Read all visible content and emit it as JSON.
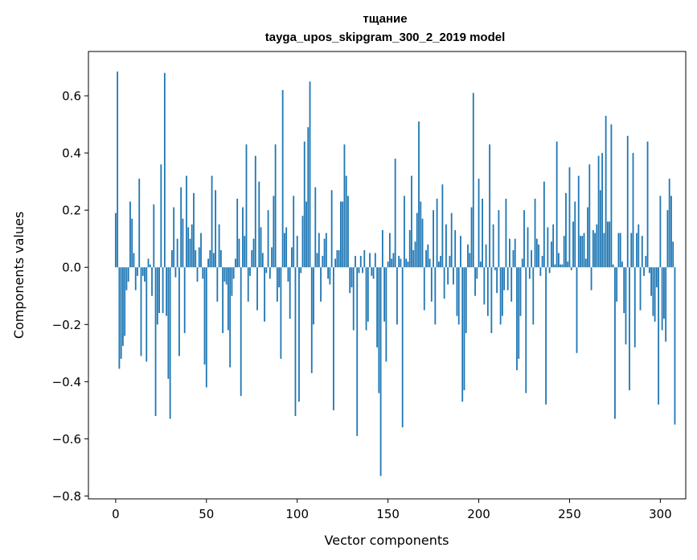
{
  "chart_data": {
    "type": "bar",
    "title": "тщание",
    "subtitle": "tayga_upos_skipgram_300_2_2019 model",
    "xlabel": "Vector components",
    "ylabel": "Components values",
    "xlim": [
      -15,
      314
    ],
    "ylim": [
      -0.81,
      0.755
    ],
    "xticks": [
      0,
      50,
      100,
      150,
      200,
      250,
      300
    ],
    "xtick_labels": [
      "0",
      "50",
      "100",
      "150",
      "200",
      "250",
      "300"
    ],
    "yticks": [
      0.6,
      0.4,
      0.2,
      0.0,
      -0.2,
      -0.4,
      -0.6,
      -0.8
    ],
    "ytick_labels": [
      "0.6",
      "0.4",
      "0.2",
      "0.0",
      "−0.2",
      "−0.4",
      "−0.6",
      "−0.8"
    ],
    "bar_color": "#1f77b4",
    "values": [
      0.19,
      0.685,
      -0.355,
      -0.32,
      -0.275,
      -0.24,
      -0.08,
      -0.05,
      0.23,
      0.17,
      0.05,
      -0.08,
      -0.03,
      0.31,
      -0.31,
      -0.03,
      -0.05,
      -0.33,
      0.03,
      0.01,
      -0.1,
      0.22,
      -0.52,
      -0.2,
      -0.16,
      0.36,
      -0.16,
      0.68,
      -0.17,
      -0.39,
      -0.53,
      0.06,
      0.21,
      -0.035,
      0.1,
      -0.31,
      0.28,
      0.17,
      -0.23,
      0.32,
      0.14,
      0.1,
      0.15,
      0.26,
      0.06,
      -0.05,
      0.07,
      0.12,
      -0.04,
      -0.34,
      -0.42,
      0.03,
      0.06,
      0.32,
      0.05,
      0.27,
      -0.12,
      0.15,
      0.06,
      -0.23,
      -0.05,
      -0.06,
      -0.22,
      -0.35,
      -0.1,
      -0.04,
      0.03,
      0.24,
      0.1,
      -0.45,
      0.21,
      0.11,
      0.43,
      -0.12,
      -0.03,
      0.06,
      0.1,
      0.39,
      -0.15,
      0.3,
      0.14,
      0.05,
      -0.19,
      -0.02,
      0.2,
      -0.04,
      0.07,
      0.25,
      0.43,
      -0.12,
      -0.07,
      -0.32,
      0.62,
      0.12,
      0.14,
      -0.05,
      -0.18,
      0.07,
      0.25,
      -0.52,
      0.11,
      -0.47,
      -0.02,
      0.18,
      0.44,
      0.23,
      0.49,
      0.65,
      -0.37,
      -0.2,
      0.28,
      0.05,
      0.12,
      -0.12,
      0.04,
      0.1,
      0.12,
      -0.04,
      -0.06,
      0.27,
      -0.5,
      0.03,
      0.06,
      0.06,
      0.23,
      0.23,
      0.43,
      0.32,
      0.25,
      -0.09,
      -0.07,
      -0.22,
      0.04,
      -0.59,
      -0.02,
      0.04,
      -0.02,
      0.06,
      -0.22,
      -0.19,
      0.05,
      -0.03,
      -0.04,
      0.05,
      -0.28,
      -0.44,
      -0.73,
      0.13,
      -0.19,
      -0.33,
      0.02,
      0.12,
      0.03,
      0.05,
      0.38,
      -0.2,
      0.04,
      0.03,
      -0.56,
      0.25,
      0.03,
      0.02,
      0.13,
      0.32,
      0.06,
      0.09,
      0.19,
      0.51,
      0.23,
      0.17,
      -0.15,
      0.06,
      0.08,
      0.03,
      -0.12,
      0.2,
      -0.2,
      0.24,
      0.02,
      0.04,
      0.29,
      -0.11,
      0.15,
      -0.06,
      0.04,
      0.19,
      -0.06,
      0.13,
      -0.17,
      -0.2,
      0.11,
      -0.47,
      -0.43,
      -0.23,
      0.08,
      0.05,
      0.21,
      0.61,
      -0.1,
      -0.04,
      0.31,
      0.02,
      0.24,
      -0.13,
      0.08,
      -0.17,
      0.43,
      -0.23,
      0.15,
      -0.01,
      -0.09,
      0.2,
      -0.2,
      -0.17,
      -0.08,
      0.24,
      -0.08,
      0.1,
      -0.12,
      0.06,
      0.1,
      -0.36,
      -0.32,
      -0.17,
      0.03,
      0.2,
      -0.44,
      0.14,
      -0.04,
      0.06,
      -0.2,
      0.24,
      0.1,
      0.08,
      -0.03,
      0.04,
      0.3,
      -0.48,
      0.14,
      -0.02,
      0.09,
      0.15,
      0.01,
      0.44,
      0.05,
      0.01,
      0.01,
      0.11,
      0.26,
      0.02,
      0.35,
      -0.01,
      0.16,
      0.23,
      -0.3,
      0.32,
      0.11,
      0.11,
      0.12,
      0.03,
      0.21,
      0.36,
      -0.08,
      0.13,
      0.12,
      0.15,
      0.39,
      0.27,
      0.4,
      0.12,
      0.53,
      0.16,
      0.16,
      0.5,
      0.01,
      -0.53,
      -0.12,
      0.12,
      0.12,
      0.02,
      -0.16,
      -0.27,
      0.46,
      -0.43,
      0.12,
      0.4,
      -0.28,
      0.12,
      0.15,
      -0.15,
      0.11,
      -0.03,
      0.04,
      0.44,
      -0.02,
      -0.1,
      -0.17,
      -0.19,
      -0.07,
      -0.48,
      0.25,
      -0.22,
      -0.18,
      -0.26,
      0.2,
      0.31,
      0.25,
      0.09,
      -0.55
    ]
  }
}
